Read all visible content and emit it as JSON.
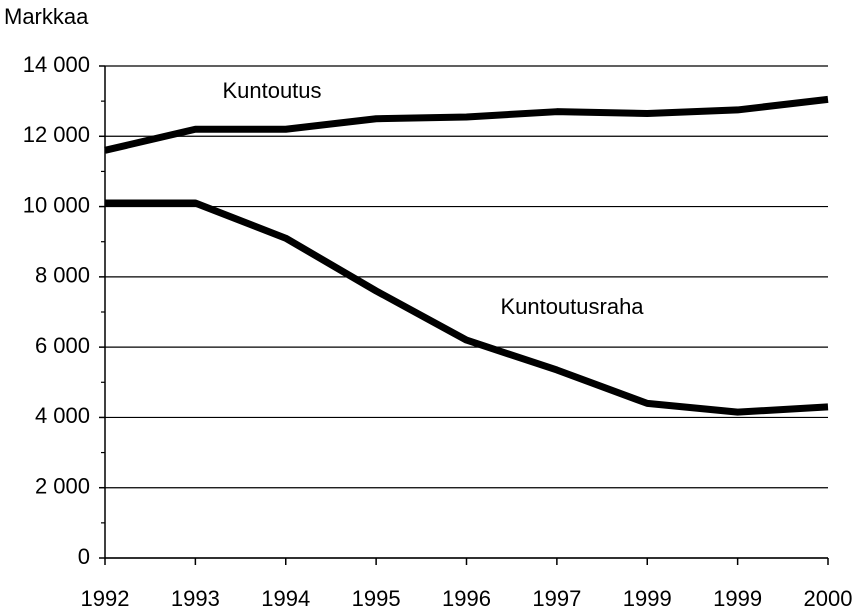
{
  "chart_data": {
    "type": "line",
    "ylabel": "Markkaa",
    "categories": [
      "1992",
      "1993",
      "1994",
      "1995",
      "1996",
      "1997",
      "1999",
      "1999",
      "2000"
    ],
    "series": [
      {
        "name": "Kuntoutus",
        "color": "#000000",
        "values": [
          11600,
          12200,
          12200,
          12500,
          12550,
          12700,
          12650,
          12750,
          13050
        ]
      },
      {
        "name": "Kuntoutusraha",
        "color": "#000000",
        "values": [
          10100,
          10100,
          9100,
          7600,
          6200,
          5350,
          4400,
          4150,
          4300
        ]
      }
    ],
    "ylim": [
      0,
      14000
    ],
    "yticks": [
      0,
      {
        "value": 2000,
        "label": "2 000"
      },
      {
        "value": 4000,
        "label": "4 000"
      },
      {
        "value": 6000,
        "label": "6 000"
      },
      {
        "value": 8000,
        "label": "8 000"
      },
      {
        "value": 10000,
        "label": "10 000"
      },
      {
        "value": 12000,
        "label": "12 000"
      },
      {
        "value": 14000,
        "label": "14 000"
      }
    ],
    "yminorticks": [
      1000,
      3000,
      5000,
      7000,
      9000,
      11000,
      13000
    ],
    "grid": true
  }
}
